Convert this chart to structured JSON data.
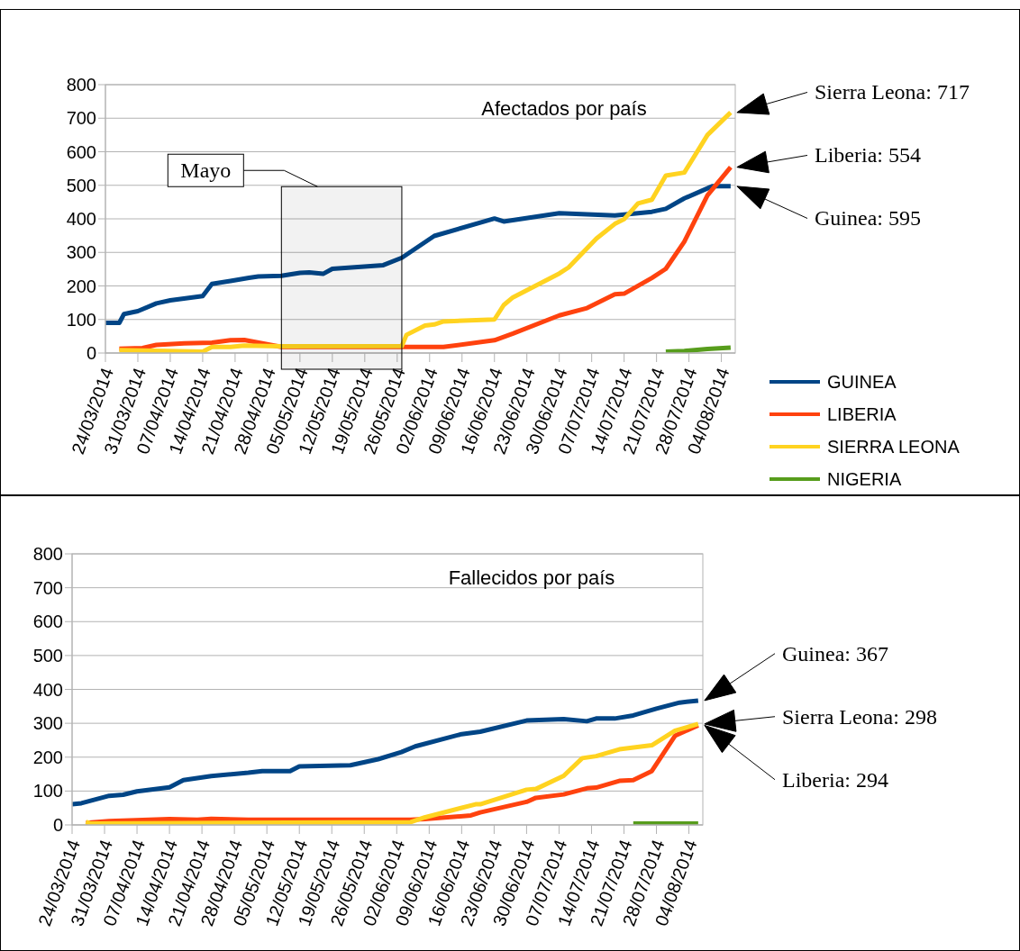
{
  "chart_data": [
    {
      "type": "line",
      "title": "Afectados por país",
      "grid": "y",
      "legend": "bottom right",
      "line_style": "solid",
      "xlim": [
        "2014-03-24",
        "2014-08-07"
      ],
      "ylim": [
        0,
        800
      ],
      "yticks": [
        0,
        100,
        200,
        300,
        400,
        500,
        600,
        700,
        800
      ],
      "xticks": [
        {
          "value": "2014-03-24",
          "label": "24/03/2014"
        },
        {
          "value": "2014-03-31",
          "label": "31/03/2014"
        },
        {
          "value": "2014-04-07",
          "label": "07/04/2014"
        },
        {
          "value": "2014-04-14",
          "label": "14/04/2014"
        },
        {
          "value": "2014-04-21",
          "label": "21/04/2014"
        },
        {
          "value": "2014-04-28",
          "label": "28/04/2014"
        },
        {
          "value": "2014-05-05",
          "label": "05/05/2014"
        },
        {
          "value": "2014-05-12",
          "label": "12/05/2014"
        },
        {
          "value": "2014-05-19",
          "label": "19/05/2014"
        },
        {
          "value": "2014-05-26",
          "label": "26/05/2014"
        },
        {
          "value": "2014-06-02",
          "label": "02/06/2014"
        },
        {
          "value": "2014-06-09",
          "label": "09/06/2014"
        },
        {
          "value": "2014-06-16",
          "label": "16/06/2014"
        },
        {
          "value": "2014-06-23",
          "label": "23/06/2014"
        },
        {
          "value": "2014-06-30",
          "label": "30/06/2014"
        },
        {
          "value": "2014-07-07",
          "label": "07/07/2014"
        },
        {
          "value": "2014-07-14",
          "label": "14/07/2014"
        },
        {
          "value": "2014-07-21",
          "label": "21/07/2014"
        },
        {
          "value": "2014-07-28",
          "label": "28/07/2014"
        },
        {
          "value": "2014-08-04",
          "label": "04/08/2014"
        }
      ],
      "series": [
        {
          "name": "GUINEA",
          "color": "#004586",
          "x": [
            "2014-03-24",
            "2014-03-27",
            "2014-03-28",
            "2014-03-31",
            "2014-04-04",
            "2014-04-07",
            "2014-04-14",
            "2014-04-16",
            "2014-04-20",
            "2014-04-24",
            "2014-04-26",
            "2014-05-01",
            "2014-05-05",
            "2014-05-07",
            "2014-05-10",
            "2014-05-12",
            "2014-05-23",
            "2014-05-27",
            "2014-06-03",
            "2014-06-16",
            "2014-06-18",
            "2014-06-30",
            "2014-07-12",
            "2014-07-20",
            "2014-07-23",
            "2014-07-27",
            "2014-08-02",
            "2014-08-06"
          ],
          "values": [
            90,
            90,
            116,
            125,
            148,
            157,
            170,
            206,
            215,
            224,
            228,
            230,
            239,
            240,
            236,
            251,
            262,
            284,
            349,
            401,
            392,
            417,
            410,
            421,
            430,
            461,
            497,
            497
          ]
        },
        {
          "name": "LIBERIA",
          "color": "#ff420e",
          "x": [
            "2014-03-27",
            "2014-04-01",
            "2014-04-04",
            "2014-04-10",
            "2014-04-16",
            "2014-04-20",
            "2014-04-23",
            "2014-05-01",
            "2014-05-27",
            "2014-06-05",
            "2014-06-16",
            "2014-06-20",
            "2014-06-30",
            "2014-07-06",
            "2014-07-12",
            "2014-07-14",
            "2014-07-20",
            "2014-07-23",
            "2014-07-27",
            "2014-08-01",
            "2014-08-06"
          ],
          "values": [
            13,
            15,
            24,
            29,
            31,
            38,
            39,
            18,
            18,
            18,
            38,
            58,
            112,
            134,
            175,
            177,
            224,
            251,
            332,
            470,
            554
          ]
        },
        {
          "name": "SIERRA LEONA",
          "color": "#ffd320",
          "x": [
            "2014-03-27",
            "2014-04-14",
            "2014-04-16",
            "2014-04-20",
            "2014-04-23",
            "2014-05-01",
            "2014-05-27",
            "2014-05-28",
            "2014-06-01",
            "2014-06-03",
            "2014-06-05",
            "2014-06-16",
            "2014-06-18",
            "2014-06-20",
            "2014-06-30",
            "2014-07-02",
            "2014-07-08",
            "2014-07-12",
            "2014-07-14",
            "2014-07-17",
            "2014-07-20",
            "2014-07-23",
            "2014-07-27",
            "2014-08-01",
            "2014-08-06"
          ],
          "values": [
            9,
            4,
            18,
            18,
            22,
            20,
            21,
            54,
            82,
            85,
            94,
            100,
            143,
            166,
            237,
            255,
            341,
            385,
            399,
            446,
            457,
            529,
            538,
            650,
            717
          ]
        },
        {
          "name": "NIGERIA",
          "color": "#579d1c",
          "x": [
            "2014-07-23",
            "2014-07-27",
            "2014-08-01",
            "2014-08-06"
          ],
          "values": [
            4,
            6,
            12,
            16
          ]
        }
      ],
      "bands": [
        {
          "axis": "x",
          "from": "2014-05-01",
          "to": "2014-05-27",
          "label": "Mayo"
        }
      ],
      "annotations": [
        "Sierra Leona: 717",
        "Liberia: 554",
        "Guinea: 595"
      ]
    },
    {
      "type": "line",
      "title": "Fallecidos por país",
      "grid": "y",
      "line_style": "solid",
      "xlim": [
        "2014-03-24",
        "2014-08-07"
      ],
      "ylim": [
        0,
        800
      ],
      "yticks": [
        0,
        100,
        200,
        300,
        400,
        500,
        600,
        700,
        800
      ],
      "xticks": [
        {
          "value": "2014-03-24",
          "label": "24/03/2014"
        },
        {
          "value": "2014-03-31",
          "label": "31/03/2014"
        },
        {
          "value": "2014-04-07",
          "label": "07/04/2014"
        },
        {
          "value": "2014-04-14",
          "label": "14/04/2014"
        },
        {
          "value": "2014-04-21",
          "label": "21/04/2014"
        },
        {
          "value": "2014-04-28",
          "label": "28/04/2014"
        },
        {
          "value": "2014-05-05",
          "label": "05/05/2014"
        },
        {
          "value": "2014-05-12",
          "label": "12/05/2014"
        },
        {
          "value": "2014-05-19",
          "label": "19/05/2014"
        },
        {
          "value": "2014-05-26",
          "label": "26/05/2014"
        },
        {
          "value": "2014-06-02",
          "label": "02/06/2014"
        },
        {
          "value": "2014-06-09",
          "label": "09/06/2014"
        },
        {
          "value": "2014-06-16",
          "label": "16/06/2014"
        },
        {
          "value": "2014-06-23",
          "label": "23/06/2014"
        },
        {
          "value": "2014-06-30",
          "label": "30/06/2014"
        },
        {
          "value": "2014-07-07",
          "label": "07/07/2014"
        },
        {
          "value": "2014-07-14",
          "label": "14/07/2014"
        },
        {
          "value": "2014-07-21",
          "label": "21/07/2014"
        },
        {
          "value": "2014-07-28",
          "label": "28/07/2014"
        },
        {
          "value": "2014-08-04",
          "label": "04/08/2014"
        }
      ],
      "series": [
        {
          "color": "#004586",
          "x": [
            "2014-03-24",
            "2014-03-26",
            "2014-04-01",
            "2014-04-04",
            "2014-04-07",
            "2014-04-14",
            "2014-04-17",
            "2014-04-23",
            "2014-05-01",
            "2014-05-04",
            "2014-05-10",
            "2014-05-12",
            "2014-05-23",
            "2014-05-27",
            "2014-05-29",
            "2014-06-03",
            "2014-06-06",
            "2014-06-16",
            "2014-06-20",
            "2014-06-30",
            "2014-07-08",
            "2014-07-13",
            "2014-07-15",
            "2014-07-19",
            "2014-07-23",
            "2014-07-28",
            "2014-08-02",
            "2014-08-06"
          ],
          "values": [
            61,
            64,
            86,
            89,
            99,
            111,
            132,
            144,
            154,
            159,
            159,
            173,
            176,
            188,
            194,
            215,
            232,
            268,
            275,
            308,
            312,
            306,
            314,
            314,
            323,
            343,
            361,
            367
          ]
        },
        {
          "color": "#ff420e",
          "x": [
            "2014-03-27",
            "2014-04-01",
            "2014-04-14",
            "2014-04-20",
            "2014-04-23",
            "2014-05-01",
            "2014-06-05",
            "2014-06-08",
            "2014-06-18",
            "2014-06-20",
            "2014-06-30",
            "2014-07-02",
            "2014-07-08",
            "2014-07-13",
            "2014-07-15",
            "2014-07-20",
            "2014-07-23",
            "2014-07-27",
            "2014-08-01",
            "2014-08-06"
          ],
          "values": [
            6,
            11,
            17,
            15,
            18,
            15,
            15,
            17,
            28,
            37,
            68,
            80,
            90,
            108,
            110,
            130,
            132,
            159,
            263,
            294
          ]
        },
        {
          "color": "#ffd320",
          "x": [
            "2014-03-27",
            "2014-03-28",
            "2014-06-05",
            "2014-06-08",
            "2014-06-19",
            "2014-06-20",
            "2014-06-30",
            "2014-07-02",
            "2014-07-08",
            "2014-07-12",
            "2014-07-15",
            "2014-07-20",
            "2014-07-27",
            "2014-08-01",
            "2014-08-06"
          ],
          "values": [
            9,
            4,
            8,
            22,
            61,
            61,
            104,
            106,
            145,
            197,
            203,
            223,
            235,
            278,
            298
          ]
        },
        {
          "color": "#579d1c",
          "x": [
            "2014-07-23",
            "2014-08-06"
          ],
          "values": [
            4,
            4
          ]
        }
      ],
      "annotations": [
        "Guinea: 367",
        "Sierra Leona: 298",
        "Liberia: 294"
      ]
    }
  ]
}
